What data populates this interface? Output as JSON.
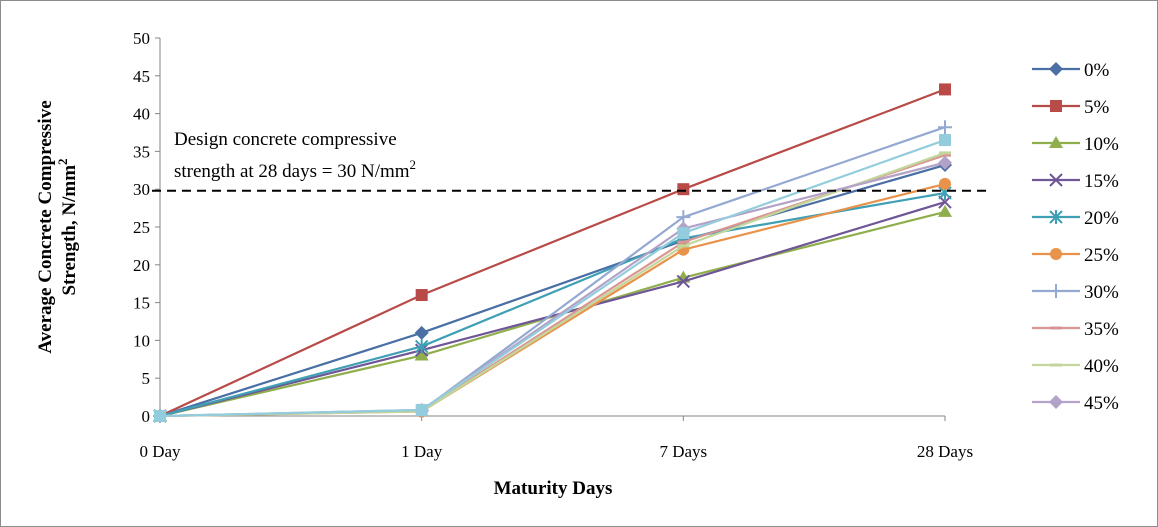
{
  "chart_data": {
    "type": "line",
    "xlabel": "Maturity Days",
    "ylabel_line1": "Average Concrete Compressive",
    "ylabel_line2": "Strength, N/mm",
    "ylabel_sup": "2",
    "categories": [
      "0 Day",
      "1 Day",
      "7 Days",
      "28 Days"
    ],
    "ylim": [
      0,
      50
    ],
    "yticks": [
      0,
      5,
      10,
      15,
      20,
      25,
      30,
      35,
      40,
      45,
      50
    ],
    "grid": false,
    "legend": "right",
    "reference_line": {
      "value": 29.8,
      "style": "dashed",
      "color": "#000000"
    },
    "annotation": {
      "line1": "Design concrete compressive",
      "line2": "strength at 28 days = 30 N/mm",
      "sup": "2"
    },
    "series": [
      {
        "name": "0%",
        "values": [
          0,
          11,
          23.2,
          33.2
        ],
        "color": "#4a6fa5",
        "marker": "diamond"
      },
      {
        "name": "5%",
        "values": [
          0,
          16,
          30,
          43.2
        ],
        "color": "#b84a48",
        "marker": "square"
      },
      {
        "name": "10%",
        "values": [
          0,
          8,
          18.3,
          27
        ],
        "color": "#8fae4c",
        "marker": "triangle"
      },
      {
        "name": "15%",
        "values": [
          0,
          8.7,
          17.8,
          28.3
        ],
        "color": "#6e5697",
        "marker": "x"
      },
      {
        "name": "20%",
        "values": [
          0,
          9.2,
          23.5,
          29.5
        ],
        "color": "#3fa0b5",
        "marker": "star"
      },
      {
        "name": "25%",
        "values": [
          0,
          0.6,
          22,
          30.7
        ],
        "color": "#e8924a",
        "marker": "circle"
      },
      {
        "name": "30%",
        "values": [
          0,
          0.7,
          26.3,
          38.2
        ],
        "color": "#94a9d2",
        "marker": "plus"
      },
      {
        "name": "35%",
        "values": [
          0,
          0.7,
          23,
          34.5
        ],
        "color": "#d99694",
        "marker": "dash"
      },
      {
        "name": "40%",
        "values": [
          0,
          0.6,
          22.5,
          34.8
        ],
        "color": "#c3d69b",
        "marker": "dash"
      },
      {
        "name": "45%",
        "values": [
          0,
          0.8,
          24.8,
          33.5
        ],
        "color": "#b3a2c7",
        "marker": "diamond"
      }
    ],
    "overlay_series": {
      "values": [
        0,
        0.8,
        24.2,
        36.5
      ],
      "color": "#93cddd",
      "marker": "square"
    }
  }
}
